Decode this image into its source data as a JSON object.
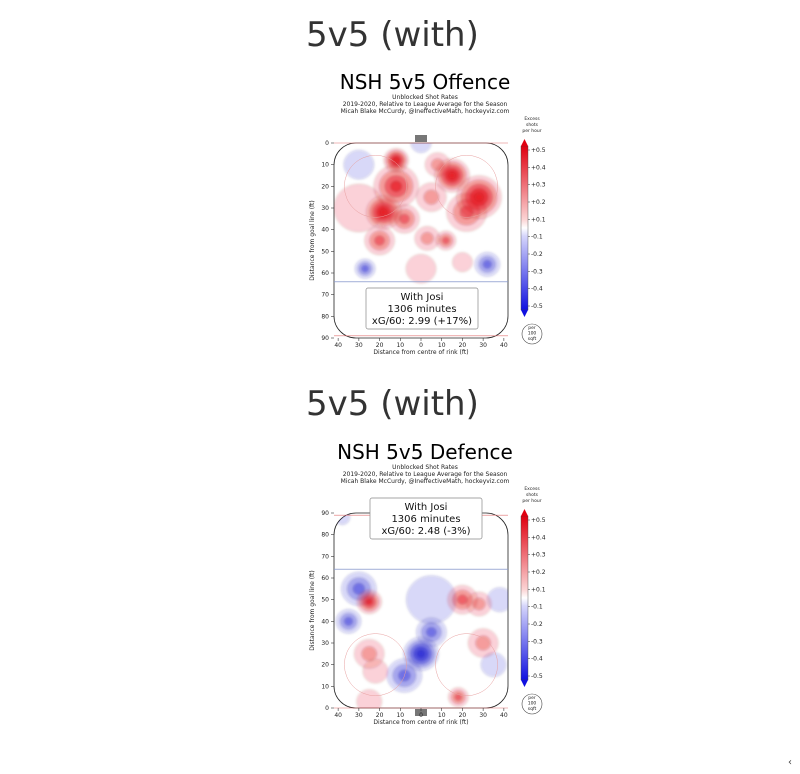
{
  "headings": [
    "5v5 (with)",
    "5v5 (with)"
  ],
  "colorbar": {
    "title_lines": [
      "Excess",
      "shots",
      "per hour"
    ],
    "ticks": [
      "+0.5",
      "+0.4",
      "+0.3",
      "+0.2",
      "+0.1",
      "-0.1",
      "-0.2",
      "-0.3",
      "-0.4",
      "-0.5"
    ],
    "unit_lines": [
      "per",
      "100",
      "sqft"
    ]
  },
  "chart_data": [
    {
      "type": "heatmap",
      "title": "NSH 5v5 Offence",
      "subtitle_lines": [
        "Unblocked Shot Rates",
        "2019-2020, Relative to League Average for the Season",
        "Micah Blake McCurdy, @IneffectiveMath, hockeyviz.com"
      ],
      "xlabel": "Distance from centre of rink (ft)",
      "ylabel": "Distance from goal line (ft)",
      "x_ticks": [
        "40",
        "30",
        "20",
        "10",
        "0",
        "10",
        "20",
        "30",
        "40"
      ],
      "y_ticks": [
        "0",
        "10",
        "20",
        "30",
        "40",
        "50",
        "60",
        "70",
        "80",
        "90"
      ],
      "ylim": [
        0,
        90
      ],
      "y_direction": "down",
      "annotation_lines": [
        "With Josi",
        "1306 minutes",
        "xG/60: 2.99 (+17%)"
      ],
      "colors": {
        "positive": "#e8141b",
        "negative": "#2b2bd8"
      },
      "blobs": [
        {
          "x": -12,
          "y": 8,
          "v": 0.5,
          "r": 5
        },
        {
          "x": -12,
          "y": 20,
          "v": 0.4,
          "r": 9
        },
        {
          "x": -18,
          "y": 32,
          "v": 0.45,
          "r": 7
        },
        {
          "x": -8,
          "y": 35,
          "v": 0.35,
          "r": 6
        },
        {
          "x": -20,
          "y": 45,
          "v": 0.3,
          "r": 6
        },
        {
          "x": 8,
          "y": 10,
          "v": 0.2,
          "r": 5
        },
        {
          "x": 15,
          "y": 15,
          "v": 0.45,
          "r": 7
        },
        {
          "x": 28,
          "y": 25,
          "v": 0.5,
          "r": 9
        },
        {
          "x": 22,
          "y": 32,
          "v": 0.35,
          "r": 8
        },
        {
          "x": 5,
          "y": 25,
          "v": 0.2,
          "r": 6
        },
        {
          "x": 3,
          "y": 44,
          "v": 0.2,
          "r": 5
        },
        {
          "x": 12,
          "y": 45,
          "v": 0.3,
          "r": 4
        },
        {
          "x": -30,
          "y": 30,
          "v": 0.15,
          "r": 10
        },
        {
          "x": -30,
          "y": 10,
          "v": -0.1,
          "r": 6
        },
        {
          "x": 0,
          "y": 0,
          "v": -0.15,
          "r": 4
        },
        {
          "x": -27,
          "y": 58,
          "v": -0.3,
          "r": 4
        },
        {
          "x": 32,
          "y": 56,
          "v": -0.25,
          "r": 5
        },
        {
          "x": 0,
          "y": 58,
          "v": 0.15,
          "r": 6
        },
        {
          "x": 20,
          "y": 55,
          "v": 0.15,
          "r": 4
        }
      ]
    },
    {
      "type": "heatmap",
      "title": "NSH 5v5 Defence",
      "subtitle_lines": [
        "Unblocked Shot Rates",
        "2019-2020, Relative to League Average for the Season",
        "Micah Blake McCurdy, @IneffectiveMath, hockeyviz.com"
      ],
      "xlabel": "Distance from centre of rink (ft)",
      "ylabel": "Distance from goal line (ft)",
      "x_ticks": [
        "40",
        "30",
        "20",
        "10",
        "0",
        "10",
        "20",
        "30",
        "40"
      ],
      "y_ticks": [
        "0",
        "10",
        "20",
        "30",
        "40",
        "50",
        "60",
        "70",
        "80",
        "90"
      ],
      "ylim": [
        0,
        90
      ],
      "y_direction": "up",
      "annotation_lines": [
        "With Josi",
        "1306 minutes",
        "xG/60: 2.48 (-3%)"
      ],
      "colors": {
        "positive": "#e8141b",
        "negative": "#2b2bd8"
      },
      "blobs": [
        {
          "x": -25,
          "y": 49,
          "v": 0.4,
          "r": 5
        },
        {
          "x": 20,
          "y": 50,
          "v": 0.35,
          "r": 6
        },
        {
          "x": 28,
          "y": 48,
          "v": 0.2,
          "r": 5
        },
        {
          "x": -25,
          "y": 25,
          "v": 0.2,
          "r": 6
        },
        {
          "x": -22,
          "y": 17,
          "v": 0.15,
          "r": 5
        },
        {
          "x": 30,
          "y": 30,
          "v": 0.2,
          "r": 6
        },
        {
          "x": 18,
          "y": 5,
          "v": 0.25,
          "r": 4
        },
        {
          "x": -25,
          "y": 3,
          "v": 0.15,
          "r": 5
        },
        {
          "x": 0,
          "y": 25,
          "v": -0.45,
          "r": 7
        },
        {
          "x": -8,
          "y": 15,
          "v": -0.3,
          "r": 7
        },
        {
          "x": 5,
          "y": 35,
          "v": -0.25,
          "r": 6
        },
        {
          "x": -30,
          "y": 55,
          "v": -0.25,
          "r": 7
        },
        {
          "x": -35,
          "y": 40,
          "v": -0.25,
          "r": 5
        },
        {
          "x": 38,
          "y": 50,
          "v": -0.15,
          "r": 5
        },
        {
          "x": 5,
          "y": 50,
          "v": -0.1,
          "r": 10
        },
        {
          "x": -38,
          "y": 88,
          "v": -0.15,
          "r": 3
        },
        {
          "x": 35,
          "y": 20,
          "v": -0.1,
          "r": 5
        }
      ]
    }
  ]
}
